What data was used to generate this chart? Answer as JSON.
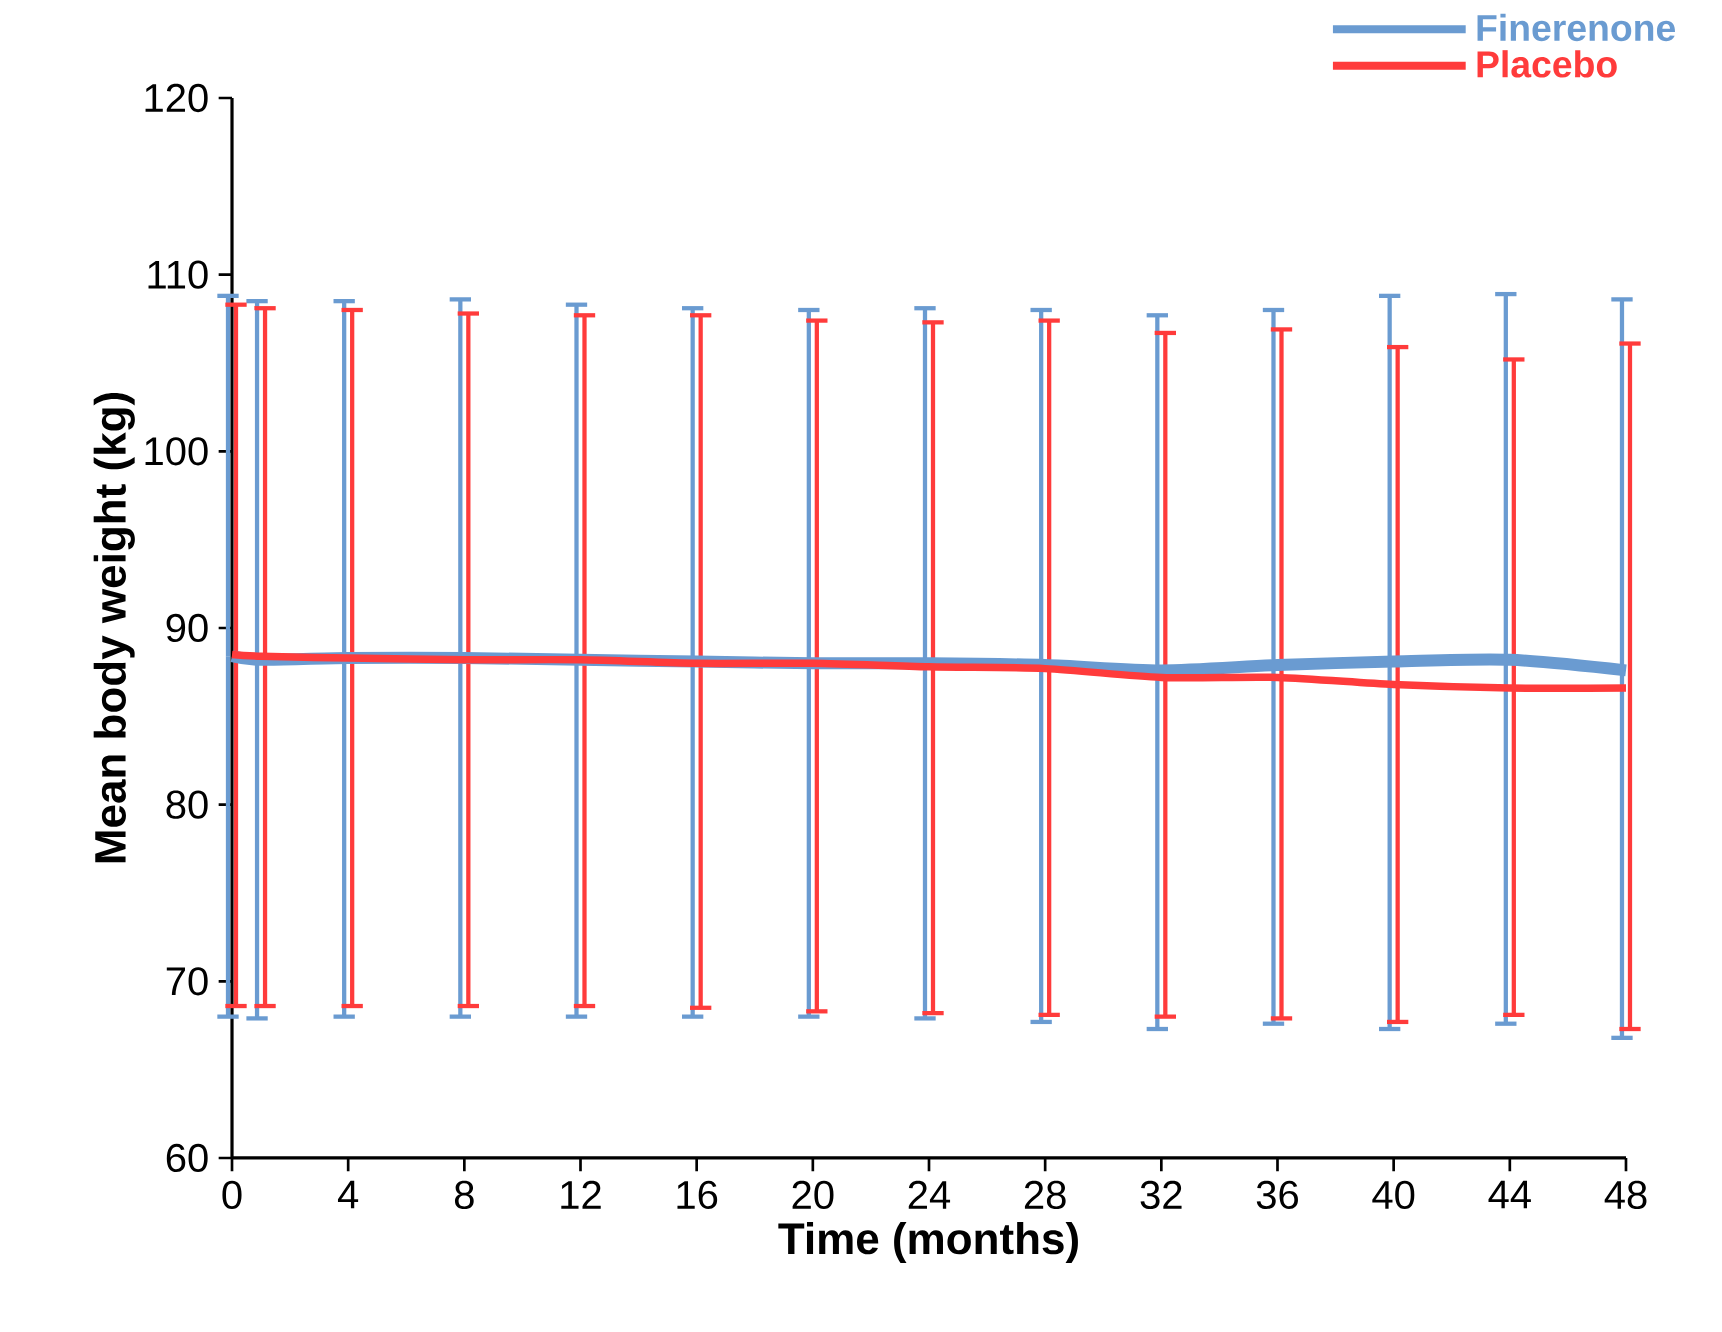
{
  "chart_data": {
    "type": "line",
    "xlabel": "Time (months)",
    "ylabel": "Mean body weight (kg)",
    "x": [
      0,
      1,
      4,
      8,
      12,
      16,
      20,
      24,
      28,
      32,
      36,
      40,
      44,
      48
    ],
    "xlim": [
      0,
      48
    ],
    "xticks": [
      0,
      4,
      8,
      12,
      16,
      20,
      24,
      28,
      32,
      36,
      40,
      44,
      48
    ],
    "ylim": [
      60,
      120
    ],
    "yticks": [
      60,
      70,
      80,
      90,
      100,
      110,
      120
    ],
    "grid": false,
    "legend": "top right",
    "marker": "none",
    "line_style": "solid",
    "series": [
      {
        "name": "Finerenone",
        "color": "#6a9bd1",
        "values": [
          88.4,
          88.2,
          88.3,
          88.3,
          88.2,
          88.1,
          88.0,
          88.0,
          87.9,
          87.6,
          87.9,
          88.1,
          88.2,
          87.6
        ],
        "errors": [
          [
            68.0,
            108.8
          ],
          [
            67.9,
            108.5
          ],
          [
            68.0,
            108.5
          ],
          [
            68.0,
            108.6
          ],
          [
            68.0,
            108.3
          ],
          [
            68.0,
            108.1
          ],
          [
            68.0,
            108.0
          ],
          [
            67.9,
            108.1
          ],
          [
            67.7,
            108.0
          ],
          [
            67.3,
            107.7
          ],
          [
            67.6,
            108.0
          ],
          [
            67.3,
            108.8
          ],
          [
            67.6,
            108.9
          ],
          [
            66.8,
            108.6
          ]
        ]
      },
      {
        "name": "Placebo",
        "color": "#ff3b3b",
        "values": [
          88.5,
          88.4,
          88.3,
          88.2,
          88.2,
          88.0,
          88.0,
          87.8,
          87.7,
          87.2,
          87.2,
          86.8,
          86.6,
          86.6
        ],
        "errors": [
          [
            68.6,
            108.3
          ],
          [
            68.6,
            108.1
          ],
          [
            68.6,
            108.0
          ],
          [
            68.6,
            107.8
          ],
          [
            68.6,
            107.7
          ],
          [
            68.5,
            107.7
          ],
          [
            68.3,
            107.4
          ],
          [
            68.2,
            107.3
          ],
          [
            68.1,
            107.4
          ],
          [
            68.0,
            106.7
          ],
          [
            67.9,
            106.9
          ],
          [
            67.7,
            105.9
          ],
          [
            68.1,
            105.2
          ],
          [
            67.3,
            106.1
          ]
        ]
      }
    ]
  }
}
